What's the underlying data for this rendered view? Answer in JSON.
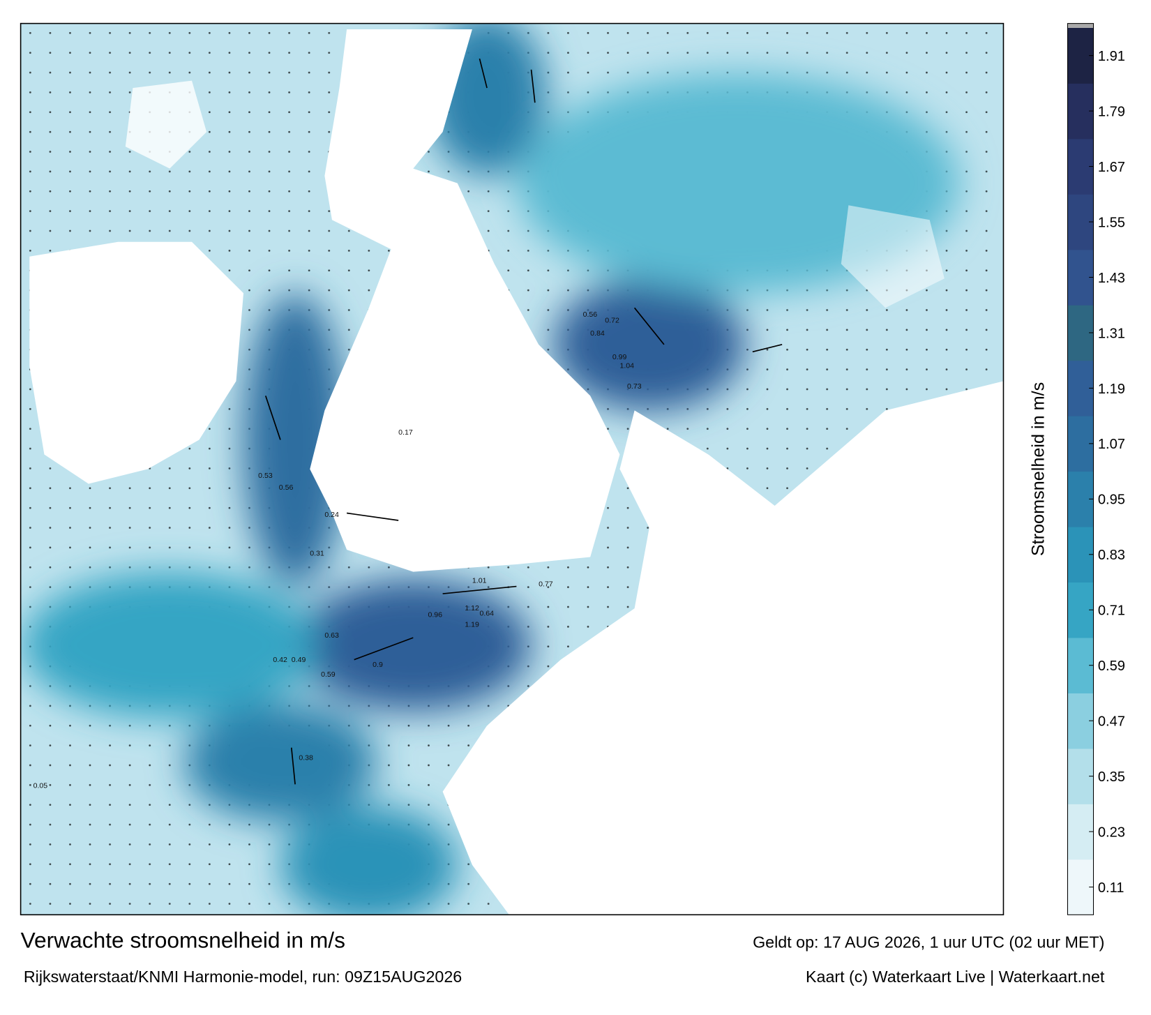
{
  "map": {
    "title": "Verwachte stroomsnelheid in m/s",
    "subtitle": "Rijkswaterstaat/KNMI Harmonie-model, run: 09Z15AUG2026",
    "valid_time": "Geldt op: 17 AUG 2026, 1 uur UTC (02 uur MET)",
    "credit": "Kaart (c) Waterkaart Live | Waterkaart.net",
    "speed_labels": [
      0.72,
      0.84,
      0.99,
      1.04,
      0.73,
      0.56,
      1.12,
      1.19,
      1.01,
      0.77,
      0.96,
      0.9,
      0.59,
      0.42,
      0.49,
      0.63,
      0.38,
      0.24,
      0.17,
      0.05,
      0.31,
      0.56,
      0.53,
      0.64
    ],
    "colorbar": {
      "label": "Stroomsnelheid in m/s",
      "ylim": [
        0.05,
        1.97
      ],
      "ticks": [
        0.11,
        0.23,
        0.35,
        0.47,
        0.59,
        0.71,
        0.83,
        0.95,
        1.07,
        1.19,
        1.31,
        1.43,
        1.55,
        1.67,
        1.79,
        1.91
      ],
      "colors": [
        "#eef7fa",
        "#d5edf3",
        "#b3dfea",
        "#8bcfe0",
        "#5bbbd3",
        "#36a5c4",
        "#2b93b8",
        "#2b80ab",
        "#2d6ea0",
        "#305f98",
        "#2e6782",
        "#31538e",
        "#2e467f",
        "#2b3b72",
        "#262f5e",
        "#1d2344"
      ]
    }
  }
}
